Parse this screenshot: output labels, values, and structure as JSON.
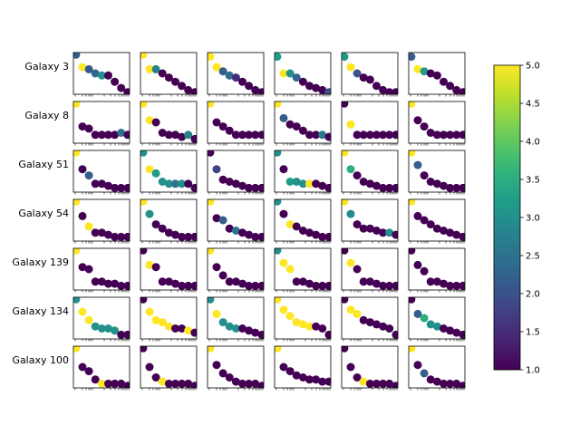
{
  "chart_data": {
    "type": "scatter",
    "layout": "grid",
    "colormap": "viridis",
    "colorbar": {
      "min": 1.0,
      "max": 5.0,
      "ticks": [
        "1.0",
        "1.5",
        "2.0",
        "2.5",
        "3.0",
        "3.5",
        "4.0",
        "4.5",
        "5.0"
      ]
    },
    "x": [
      1,
      2,
      3,
      4,
      5,
      6,
      7,
      8,
      9
    ],
    "rows": [
      {
        "label": "Galaxy 3",
        "panels": [
          {
            "y": [
              9.5,
              6.5,
              6.0,
              5.0,
              4.5,
              4.5,
              3.0,
              1.5,
              0.5
            ],
            "c": [
              2.2,
              5.0,
              2.1,
              2.3,
              3.0,
              1.0,
              1.0,
              1.0,
              1.0
            ]
          },
          {
            "y": [
              9.5,
              6.0,
              6.0,
              5.0,
              4.0,
              3.0,
              2.0,
              1.0,
              0.5
            ],
            "c": [
              5.0,
              5.0,
              2.8,
              1.0,
              1.0,
              1.0,
              1.0,
              1.0,
              1.0
            ]
          },
          {
            "y": [
              9.0,
              6.5,
              5.5,
              4.5,
              4.0,
              3.0,
              2.0,
              1.0,
              0.5
            ],
            "c": [
              5.0,
              5.0,
              2.2,
              2.4,
              1.5,
              1.0,
              1.0,
              1.0,
              1.0
            ]
          },
          {
            "y": [
              9.0,
              5.0,
              5.0,
              4.0,
              3.0,
              2.0,
              1.5,
              1.0,
              0.5
            ],
            "c": [
              3.2,
              5.0,
              3.0,
              2.3,
              1.0,
              1.0,
              1.0,
              1.0,
              2.0
            ]
          },
          {
            "y": [
              9.0,
              6.5,
              5.0,
              4.0,
              3.5,
              2.0,
              1.0,
              0.5,
              0.5
            ],
            "c": [
              3.2,
              5.0,
              2.0,
              1.0,
              1.0,
              1.0,
              1.0,
              1.0,
              1.0
            ]
          },
          {
            "y": [
              9.0,
              6.0,
              5.5,
              5.0,
              4.5,
              3.0,
              2.0,
              1.0,
              0.5
            ],
            "c": [
              2.2,
              5.0,
              3.2,
              1.0,
              1.0,
              1.0,
              1.0,
              1.0,
              1.0
            ]
          }
        ]
      },
      {
        "label": "Galaxy 8",
        "panels": [
          {
            "y": [
              9.5,
              4.0,
              3.5,
              2.0,
              2.0,
              2.0,
              2.0,
              2.5,
              2.0
            ],
            "c": [
              5.0,
              1.0,
              1.0,
              1.0,
              1.0,
              1.0,
              1.0,
              2.5,
              1.0
            ]
          },
          {
            "y": [
              9.5,
              5.5,
              5.0,
              2.5,
              2.0,
              2.0,
              1.5,
              2.0,
              1.0
            ],
            "c": [
              5.0,
              5.0,
              1.0,
              1.0,
              1.0,
              1.0,
              1.0,
              2.8,
              1.0
            ]
          },
          {
            "y": [
              9.5,
              5.0,
              4.0,
              3.0,
              2.0,
              2.0,
              2.0,
              2.0,
              2.0
            ],
            "c": [
              5.0,
              1.0,
              1.0,
              1.0,
              1.0,
              1.0,
              1.0,
              1.0,
              1.0
            ]
          },
          {
            "y": [
              9.5,
              6.0,
              4.5,
              4.0,
              3.0,
              2.0,
              2.0,
              2.0,
              1.5
            ],
            "c": [
              5.0,
              2.2,
              1.0,
              1.0,
              1.0,
              1.0,
              1.0,
              2.6,
              1.0
            ]
          },
          {
            "y": [
              9.5,
              4.5,
              2.0,
              2.0,
              2.0,
              2.0,
              2.0,
              2.0,
              2.0
            ],
            "c": [
              1.0,
              5.0,
              1.0,
              1.0,
              1.0,
              1.0,
              1.0,
              1.0,
              1.0
            ]
          },
          {
            "y": [
              9.5,
              5.5,
              4.0,
              2.5,
              2.0,
              2.0,
              2.0,
              2.0,
              2.0
            ],
            "c": [
              5.0,
              1.0,
              1.0,
              1.0,
              1.0,
              1.0,
              1.0,
              1.0,
              1.0
            ]
          }
        ]
      },
      {
        "label": "Galaxy 51",
        "panels": [
          {
            "y": [
              9.5,
              5.5,
              4.0,
              2.0,
              2.0,
              1.5,
              1.0,
              1.0,
              1.0
            ],
            "c": [
              5.0,
              1.0,
              2.2,
              1.0,
              1.0,
              1.0,
              1.0,
              1.0,
              1.0
            ]
          },
          {
            "y": [
              9.5,
              5.5,
              4.5,
              2.5,
              2.0,
              2.0,
              2.0,
              2.0,
              1.0
            ],
            "c": [
              3.0,
              5.0,
              3.2,
              3.0,
              3.0,
              2.5,
              3.0,
              1.0,
              1.0
            ]
          },
          {
            "y": [
              9.5,
              5.5,
              3.0,
              2.5,
              2.0,
              1.5,
              1.0,
              1.0,
              1.0
            ],
            "c": [
              1.0,
              1.8,
              1.0,
              1.0,
              1.0,
              1.0,
              1.0,
              1.0,
              1.0
            ]
          },
          {
            "y": [
              9.5,
              5.5,
              2.5,
              2.5,
              2.0,
              2.0,
              2.0,
              1.5,
              1.0
            ],
            "c": [
              3.0,
              1.0,
              3.2,
              3.0,
              3.0,
              5.0,
              1.0,
              1.0,
              1.0
            ]
          },
          {
            "y": [
              9.5,
              5.5,
              4.0,
              2.5,
              2.0,
              1.5,
              1.0,
              1.0,
              1.0
            ],
            "c": [
              5.0,
              3.5,
              1.0,
              1.0,
              1.0,
              1.0,
              1.0,
              1.0,
              1.0
            ]
          },
          {
            "y": [
              9.5,
              6.5,
              4.0,
              2.5,
              2.0,
              1.5,
              1.0,
              1.0,
              1.0
            ],
            "c": [
              5.0,
              2.2,
              1.0,
              1.0,
              1.0,
              1.0,
              1.0,
              1.0,
              1.0
            ]
          }
        ]
      },
      {
        "label": "Galaxy 54",
        "panels": [
          {
            "y": [
              9.5,
              6.0,
              3.5,
              2.0,
              2.0,
              1.5,
              1.0,
              1.0,
              1.0
            ],
            "c": [
              5.0,
              1.0,
              5.0,
              1.0,
              1.0,
              1.0,
              1.0,
              1.0,
              1.0
            ]
          },
          {
            "y": [
              9.5,
              6.5,
              4.0,
              3.0,
              2.0,
              1.5,
              1.0,
              1.0,
              1.0
            ],
            "c": [
              5.0,
              3.0,
              1.0,
              1.0,
              1.0,
              1.0,
              1.0,
              1.0,
              1.0
            ]
          },
          {
            "y": [
              9.5,
              5.5,
              5.0,
              3.0,
              2.5,
              2.0,
              1.5,
              1.0,
              1.0
            ],
            "c": [
              5.0,
              1.0,
              2.2,
              1.0,
              2.5,
              1.0,
              1.0,
              1.0,
              1.0
            ]
          },
          {
            "y": [
              9.5,
              6.5,
              4.0,
              3.5,
              2.5,
              2.0,
              1.5,
              1.0,
              1.0
            ],
            "c": [
              3.0,
              1.0,
              5.0,
              1.0,
              1.0,
              1.0,
              1.0,
              1.0,
              1.0
            ]
          },
          {
            "y": [
              9.5,
              6.5,
              4.0,
              3.0,
              3.0,
              2.5,
              2.0,
              2.0,
              1.5
            ],
            "c": [
              5.0,
              2.9,
              1.0,
              1.0,
              1.0,
              1.0,
              1.0,
              3.0,
              1.0
            ]
          },
          {
            "y": [
              9.5,
              6.0,
              5.0,
              4.0,
              3.0,
              2.5,
              2.0,
              1.5,
              1.0
            ],
            "c": [
              5.0,
              1.0,
              1.0,
              1.0,
              1.0,
              1.0,
              1.0,
              1.0,
              1.0
            ]
          }
        ]
      },
      {
        "label": "Galaxy 139",
        "panels": [
          {
            "y": [
              9.5,
              5.5,
              5.0,
              2.0,
              2.0,
              1.5,
              1.5,
              1.0,
              1.0
            ],
            "c": [
              5.0,
              1.0,
              1.0,
              1.0,
              1.0,
              1.0,
              1.0,
              1.0,
              1.0
            ]
          },
          {
            "y": [
              9.5,
              6.0,
              5.5,
              2.0,
              2.0,
              1.5,
              1.0,
              1.0,
              1.0
            ],
            "c": [
              1.0,
              5.0,
              1.0,
              1.0,
              1.0,
              1.0,
              1.0,
              1.0,
              1.0
            ]
          },
          {
            "y": [
              9.5,
              5.5,
              3.5,
              2.0,
              2.0,
              1.5,
              1.0,
              1.0,
              1.0
            ],
            "c": [
              5.0,
              1.0,
              1.0,
              1.0,
              1.0,
              1.0,
              1.0,
              1.0,
              1.0
            ]
          },
          {
            "y": [
              9.5,
              6.5,
              5.0,
              2.0,
              2.0,
              1.5,
              1.0,
              1.0,
              1.0
            ],
            "c": [
              3.0,
              5.0,
              5.0,
              1.0,
              1.0,
              1.0,
              1.0,
              1.0,
              1.0
            ]
          },
          {
            "y": [
              9.5,
              6.5,
              5.0,
              2.0,
              2.0,
              1.5,
              1.0,
              1.0,
              1.0
            ],
            "c": [
              1.0,
              5.0,
              1.0,
              1.0,
              1.0,
              1.0,
              1.0,
              1.0,
              1.0
            ]
          },
          {
            "y": [
              9.5,
              6.0,
              4.5,
              2.0,
              2.0,
              1.5,
              1.0,
              1.0,
              1.0
            ],
            "c": [
              1.0,
              1.0,
              1.0,
              1.0,
              1.0,
              1.0,
              1.0,
              1.0,
              1.0
            ]
          }
        ]
      },
      {
        "label": "Galaxy 134",
        "panels": [
          {
            "y": [
              9.5,
              6.5,
              4.5,
              3.0,
              2.5,
              2.5,
              2.0,
              1.0,
              1.0
            ],
            "c": [
              3.0,
              5.0,
              5.0,
              3.0,
              3.0,
              3.0,
              3.0,
              1.0,
              1.0
            ]
          },
          {
            "y": [
              9.5,
              6.5,
              4.5,
              4.0,
              3.0,
              2.5,
              2.5,
              2.0,
              1.5
            ],
            "c": [
              1.0,
              5.0,
              5.0,
              5.0,
              5.0,
              1.0,
              1.0,
              5.0,
              1.0
            ]
          },
          {
            "y": [
              9.5,
              6.0,
              4.0,
              3.0,
              2.5,
              2.5,
              2.0,
              1.5,
              1.0
            ],
            "c": [
              3.0,
              5.0,
              3.0,
              3.0,
              3.0,
              1.0,
              1.0,
              1.0,
              1.0
            ]
          },
          {
            "y": [
              9.5,
              7.0,
              5.5,
              4.0,
              3.5,
              3.0,
              3.0,
              2.5,
              1.0
            ],
            "c": [
              5.0,
              5.0,
              5.0,
              5.0,
              5.0,
              5.0,
              1.0,
              1.0,
              1.0
            ]
          },
          {
            "y": [
              9.5,
              7.0,
              6.0,
              4.5,
              4.0,
              3.5,
              3.0,
              2.5,
              1.0
            ],
            "c": [
              1.0,
              5.0,
              5.0,
              1.0,
              1.0,
              1.0,
              1.0,
              1.0,
              1.0
            ]
          },
          {
            "y": [
              9.5,
              6.0,
              5.0,
              3.5,
              3.0,
              2.5,
              2.0,
              1.5,
              1.0
            ],
            "c": [
              1.0,
              2.2,
              3.5,
              3.0,
              3.0,
              1.0,
              1.0,
              1.0,
              1.0
            ]
          }
        ]
      },
      {
        "label": "Galaxy 100",
        "panels": [
          {
            "y": [
              9.5,
              5.0,
              4.0,
              2.0,
              1.0,
              1.0,
              1.0,
              1.0,
              0.5
            ],
            "c": [
              5.0,
              1.0,
              1.0,
              1.0,
              5.0,
              1.0,
              1.0,
              1.0,
              1.0
            ]
          },
          {
            "y": [
              9.5,
              5.0,
              2.5,
              1.5,
              1.0,
              1.0,
              1.0,
              1.0,
              0.5
            ],
            "c": [
              1.0,
              1.0,
              1.0,
              5.0,
              1.0,
              1.0,
              1.0,
              1.0,
              1.0
            ]
          },
          {
            "y": [
              9.5,
              5.5,
              3.5,
              2.5,
              1.5,
              1.0,
              1.0,
              1.0,
              0.5
            ],
            "c": [
              5.0,
              1.0,
              1.0,
              1.0,
              1.0,
              1.0,
              1.0,
              1.0,
              1.0
            ]
          },
          {
            "y": [
              9.5,
              5.0,
              4.0,
              3.0,
              2.5,
              2.0,
              2.0,
              1.5,
              1.5
            ],
            "c": [
              5.0,
              1.0,
              1.0,
              1.0,
              1.0,
              1.0,
              1.0,
              1.0,
              1.0
            ]
          },
          {
            "y": [
              9.5,
              5.0,
              2.5,
              1.5,
              1.0,
              1.0,
              1.0,
              1.0,
              0.5
            ],
            "c": [
              1.0,
              1.0,
              1.0,
              5.0,
              1.0,
              1.0,
              1.0,
              1.0,
              1.0
            ]
          },
          {
            "y": [
              9.5,
              5.5,
              3.5,
              2.0,
              1.5,
              1.0,
              1.0,
              1.0,
              0.5
            ],
            "c": [
              5.0,
              1.0,
              2.2,
              1.0,
              1.0,
              1.0,
              1.0,
              1.0,
              1.0
            ]
          }
        ]
      }
    ]
  }
}
